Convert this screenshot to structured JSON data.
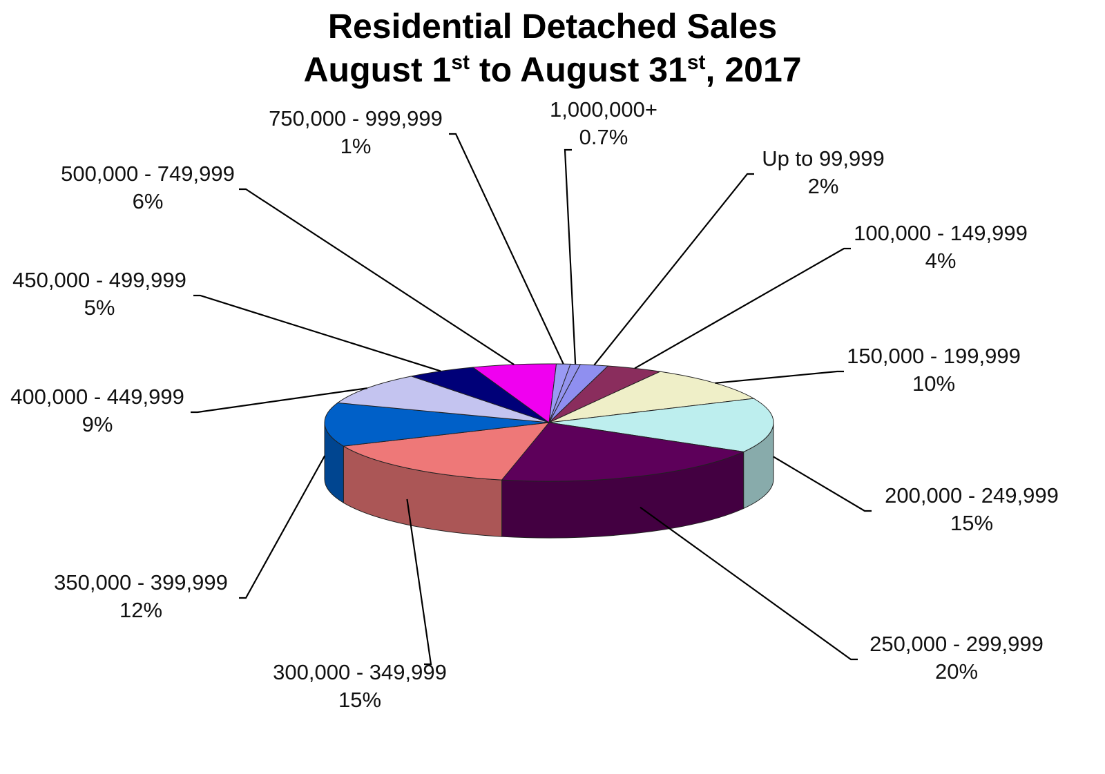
{
  "chart_data": {
    "type": "pie",
    "title_line1": "Residential Detached Sales",
    "title_line2": {
      "part1": "August 1",
      "sup1": "st",
      "part2": " to August 31",
      "sup2": "st",
      "part3": ", 2017"
    },
    "slices": [
      {
        "label": "Up to 99,999",
        "value": 2,
        "value_label": "2%",
        "color": "#8f8ff0"
      },
      {
        "label": "100,000 - 149,999",
        "value": 4,
        "value_label": "4%",
        "color": "#8a2d5d"
      },
      {
        "label": "150,000 - 199,999",
        "value": 10,
        "value_label": "10%",
        "color": "#efefc8"
      },
      {
        "label": "200,000 - 249,999",
        "value": 15,
        "value_label": "15%",
        "color": "#bdeeee"
      },
      {
        "label": "250,000 - 299,999",
        "value": 20,
        "value_label": "20%",
        "color": "#5d005a"
      },
      {
        "label": "300,000 - 349,999",
        "value": 15,
        "value_label": "15%",
        "color": "#ee7878"
      },
      {
        "label": "350,000 - 399,999",
        "value": 12,
        "value_label": "12%",
        "color": "#0060c8"
      },
      {
        "label": "400,000 - 449,999",
        "value": 9,
        "value_label": "9%",
        "color": "#c4c4f0"
      },
      {
        "label": "450,000 - 499,999",
        "value": 5,
        "value_label": "5%",
        "color": "#000078"
      },
      {
        "label": "500,000 - 749,999",
        "value": 6,
        "value_label": "6%",
        "color": "#f000f0"
      },
      {
        "label": "750,000 - 999,999",
        "value": 1,
        "value_label": "1%",
        "color": "#9a9af4"
      },
      {
        "label": "1,000,000+",
        "value": 0.7,
        "value_label": "0.7%",
        "color": "#9494ee"
      }
    ]
  }
}
